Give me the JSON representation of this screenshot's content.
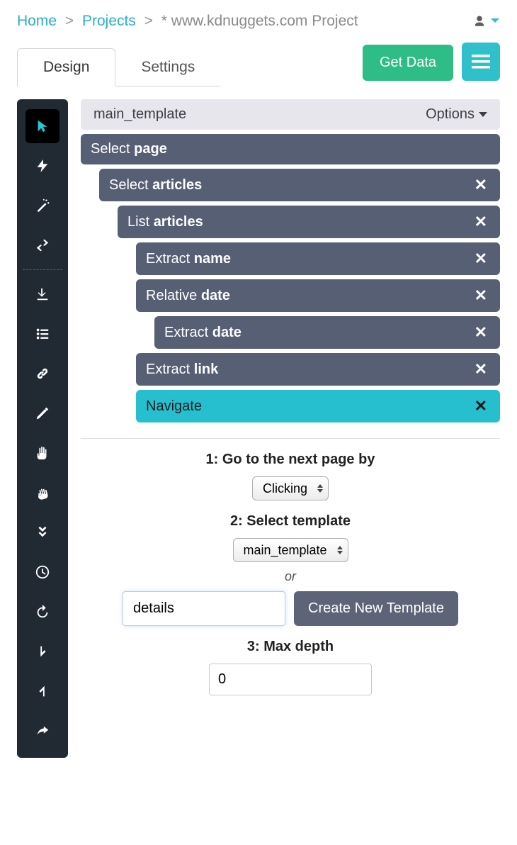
{
  "breadcrumb": {
    "home": "Home",
    "projects": "Projects",
    "current": "* www.kdnuggets.com Project"
  },
  "tabs": {
    "design": "Design",
    "settings": "Settings"
  },
  "buttons": {
    "get_data": "Get Data",
    "create_template": "Create New Template"
  },
  "template": {
    "name": "main_template",
    "options_label": "Options"
  },
  "tree": [
    {
      "indent": 0,
      "prefix": "Select ",
      "bold": "page",
      "closable": false,
      "selected": false
    },
    {
      "indent": 1,
      "prefix": "Select ",
      "bold": "articles",
      "closable": true,
      "selected": false
    },
    {
      "indent": 2,
      "prefix": "List ",
      "bold": "articles",
      "closable": true,
      "selected": false
    },
    {
      "indent": 3,
      "prefix": "Extract ",
      "bold": "name",
      "closable": true,
      "selected": false
    },
    {
      "indent": 3,
      "prefix": "Relative ",
      "bold": "date",
      "closable": true,
      "selected": false
    },
    {
      "indent": 4,
      "prefix": "Extract ",
      "bold": "date",
      "closable": true,
      "selected": false
    },
    {
      "indent": 3,
      "prefix": "Extract ",
      "bold": "link",
      "closable": true,
      "selected": false
    },
    {
      "indent": 3,
      "prefix": "Navigate",
      "bold": "",
      "closable": true,
      "selected": true
    }
  ],
  "form": {
    "step1_label": "1: Go to the next page by",
    "step1_value": "Clicking",
    "step2_label": "2: Select template",
    "step2_value": "main_template",
    "or_label": "or",
    "new_template_value": "details",
    "step3_label": "3: Max depth",
    "step3_value": "0"
  },
  "colors": {
    "link": "#2bb0c8",
    "brand_green": "#2ebd86",
    "brand_cyan": "#2fc0cc",
    "node_bg": "#565f74",
    "node_selected": "#26bfcf",
    "sidebar_bg": "#212933"
  },
  "sidebar_icons": [
    "pointer",
    "bolt",
    "wand",
    "swap",
    "download",
    "list",
    "link",
    "pencil",
    "hand",
    "grab",
    "chevrons-down",
    "clock",
    "reload",
    "arrow-down",
    "arrow-up",
    "share"
  ]
}
